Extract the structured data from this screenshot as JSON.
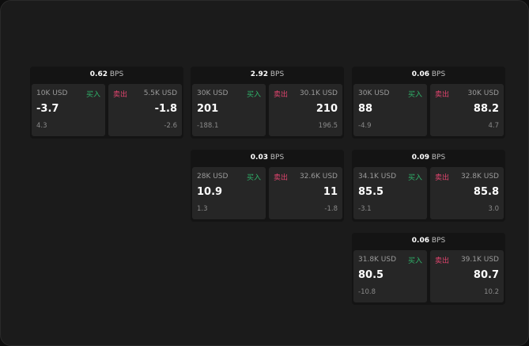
{
  "colors": {
    "buy": "#2fb36a",
    "sell": "#e0446e"
  },
  "labels": {
    "buy": "买入",
    "sell": "卖出",
    "unit": "BPS"
  },
  "widgets": [
    {
      "spread": "0.62",
      "bid": {
        "size": "10K USD",
        "price": "-3.7",
        "delta": "4.3"
      },
      "ask": {
        "size": "5.5K USD",
        "price": "-1.8",
        "delta": "-2.6"
      }
    },
    {
      "spread": "2.92",
      "bid": {
        "size": "30K USD",
        "price": "201",
        "delta": "-188.1"
      },
      "ask": {
        "size": "30.1K USD",
        "price": "210",
        "delta": "196.5"
      }
    },
    {
      "spread": "0.06",
      "bid": {
        "size": "30K USD",
        "price": "88",
        "delta": "-4.9"
      },
      "ask": {
        "size": "30K USD",
        "price": "88.2",
        "delta": "4.7"
      }
    },
    {
      "spread": "0.03",
      "bid": {
        "size": "28K USD",
        "price": "10.9",
        "delta": "1.3"
      },
      "ask": {
        "size": "32.6K USD",
        "price": "11",
        "delta": "-1.8"
      }
    },
    {
      "spread": "0.09",
      "bid": {
        "size": "34.1K USD",
        "price": "85.5",
        "delta": "-3.1"
      },
      "ask": {
        "size": "32.8K USD",
        "price": "85.8",
        "delta": "3.0"
      }
    },
    {
      "spread": "0.06",
      "bid": {
        "size": "31.8K USD",
        "price": "80.5",
        "delta": "-10.8"
      },
      "ask": {
        "size": "39.1K USD",
        "price": "80.7",
        "delta": "10.2"
      }
    }
  ]
}
